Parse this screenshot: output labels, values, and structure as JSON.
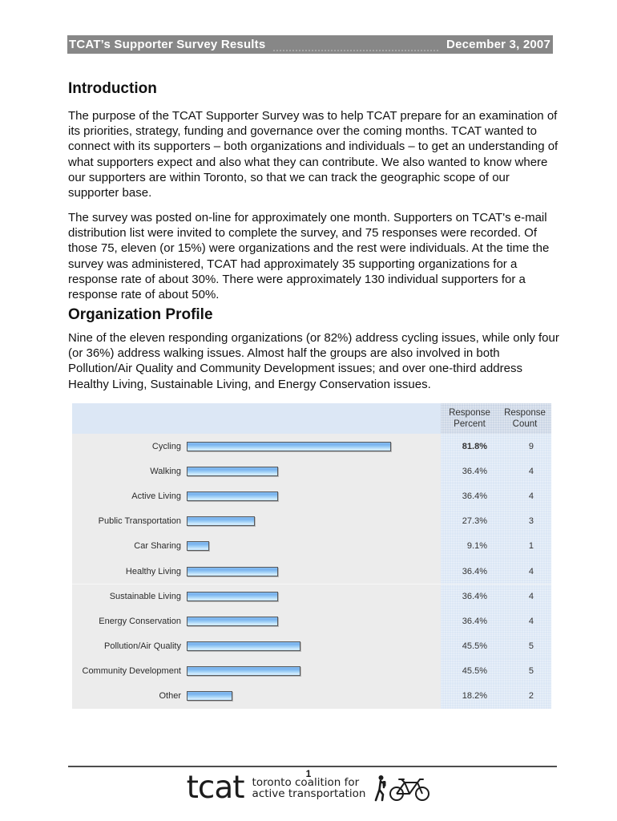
{
  "header": {
    "title": "TCAT’s Supporter Survey Results",
    "date": "December 3, 2007"
  },
  "sections": [
    {
      "heading": "Introduction",
      "paragraphs": [
        "The purpose of the TCAT Supporter Survey was to help TCAT prepare for an examination of its priorities, strategy, funding and governance over the coming months. TCAT wanted to connect with its supporters – both organizations and individuals – to get an understanding of what supporters expect and also what they can contribute. We also wanted to know where our supporters are within Toronto, so that we can track the geographic scope of our supporter base.",
        "The survey was posted on-line for approximately one month.  Supporters on TCAT's e-mail distribution list were invited to complete the survey, and 75 responses were recorded. Of those 75, eleven (or 15%) were organizations and the rest were individuals. At the time the survey was administered, TCAT had approximately 35 supporting organizations for a response rate of about 30%. There were approximately 130 individual supporters for a response rate of about 50%."
      ]
    },
    {
      "heading": "Organization Profile",
      "paragraphs": [
        "Nine of the eleven responding organizations (or 82%) address cycling issues, while only four (or 36%) address walking issues.  Almost half the groups are also involved in both Pollution/Air Quality and Community Development issues; and over one-third address Healthy Living, Sustainable Living, and Energy Conservation issues."
      ]
    }
  ],
  "chart_data": {
    "type": "bar",
    "orientation": "horizontal",
    "columns": [
      "Response Percent",
      "Response Count"
    ],
    "categories": [
      "Cycling",
      "Walking",
      "Active Living",
      "Public Transportation",
      "Car Sharing",
      "Healthy Living",
      "Sustainable Living",
      "Energy Conservation",
      "Pollution/Air Quality",
      "Community Development",
      "Other"
    ],
    "percents": [
      81.8,
      36.4,
      36.4,
      27.3,
      9.1,
      36.4,
      36.4,
      36.4,
      45.5,
      45.5,
      18.2
    ],
    "percent_labels": [
      "81.8%",
      "36.4%",
      "36.4%",
      "27.3%",
      "9.1%",
      "36.4%",
      "36.4%",
      "36.4%",
      "45.5%",
      "45.5%",
      "18.2%"
    ],
    "counts": [
      9,
      4,
      4,
      3,
      1,
      4,
      4,
      4,
      5,
      5,
      2
    ],
    "xlim": [
      0,
      100
    ],
    "bar_color": "#79b2ee",
    "panel_gray": "#ececec",
    "panel_blue": "#dce7f5",
    "header_blue": "#ccd7e6"
  },
  "footer": {
    "page_number": "1",
    "logo_text": "tcat",
    "tagline_line1": "toronto coalition for",
    "tagline_line2": "active transportation",
    "icons": [
      "pedestrian-icon",
      "bicycle-icon"
    ]
  },
  "colors": {
    "titlebar_bg": "#878787",
    "titlebar_text": "#ffffff",
    "body_text": "#111111",
    "footer_rule": "#4d4d4d"
  }
}
